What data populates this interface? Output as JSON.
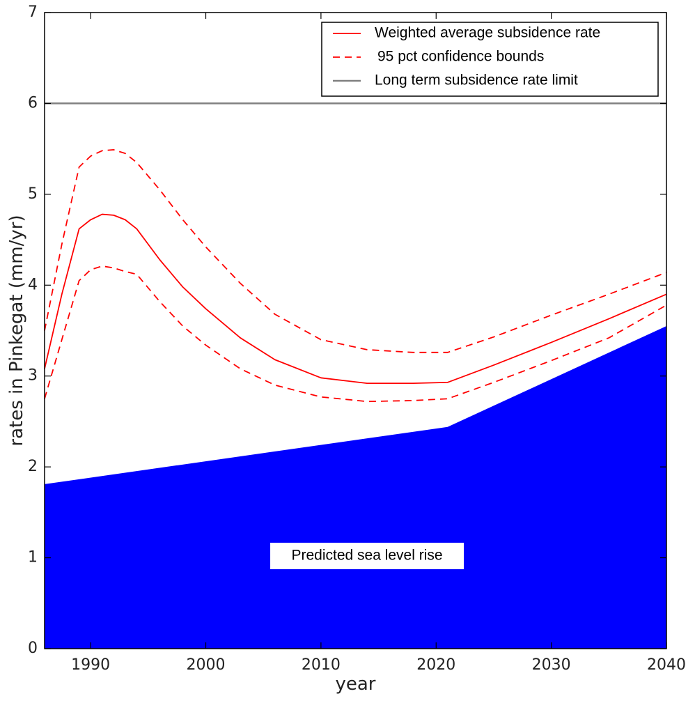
{
  "chart_data": {
    "type": "line",
    "xlabel": "year",
    "ylabel": "rates in Pinkegat (mm/yr)",
    "xlim": [
      1986,
      2040
    ],
    "ylim": [
      0,
      7
    ],
    "x_ticks": [
      1990,
      2000,
      2010,
      2020,
      2030,
      2040
    ],
    "y_ticks": [
      0,
      1,
      2,
      3,
      4,
      5,
      6,
      7
    ],
    "grid": false,
    "legend_position": "top-right",
    "series": [
      {
        "name": "Weighted average subsidence rate",
        "style": "solid",
        "color": "#ff0000",
        "x": [
          1986,
          1987.5,
          1989,
          1990,
          1991,
          1992,
          1993,
          1994,
          1996,
          1998,
          2000,
          2003,
          2006,
          2010,
          2014,
          2018,
          2021,
          2025,
          2030,
          2035,
          2040
        ],
        "y": [
          3.08,
          3.9,
          4.62,
          4.72,
          4.78,
          4.77,
          4.72,
          4.62,
          4.28,
          3.98,
          3.74,
          3.42,
          3.18,
          2.98,
          2.92,
          2.92,
          2.93,
          3.12,
          3.37,
          3.63,
          3.9
        ]
      },
      {
        "name": "95 pct confidence bounds",
        "style": "dashed",
        "color": "#ff0000",
        "x": [
          1986,
          1987.5,
          1989,
          1990,
          1991,
          1992,
          1993,
          1994,
          1996,
          1998,
          2000,
          2003,
          2006,
          2010,
          2014,
          2018,
          2021,
          2025,
          2030,
          2035,
          2040
        ],
        "y": [
          3.5,
          4.45,
          5.3,
          5.42,
          5.48,
          5.49,
          5.45,
          5.35,
          5.05,
          4.72,
          4.42,
          4.02,
          3.68,
          3.4,
          3.29,
          3.26,
          3.26,
          3.43,
          3.67,
          3.9,
          4.14
        ]
      },
      {
        "name": "",
        "style": "dashed",
        "color": "#ff0000",
        "x": [
          1986,
          1987.5,
          1989,
          1990,
          1991,
          1992,
          1993,
          1994,
          1996,
          1998,
          2000,
          2003,
          2006,
          2010,
          2014,
          2018,
          2021,
          2025,
          2030,
          2035,
          2040
        ],
        "y": [
          2.75,
          3.4,
          4.05,
          4.17,
          4.21,
          4.19,
          4.15,
          4.12,
          3.82,
          3.55,
          3.34,
          3.08,
          2.9,
          2.77,
          2.72,
          2.73,
          2.75,
          2.93,
          3.17,
          3.42,
          3.78
        ]
      },
      {
        "name": "Long term subsidence rate limit",
        "style": "solid",
        "color": "#808080",
        "x": [
          1986,
          2040
        ],
        "y": [
          6,
          6
        ]
      }
    ],
    "area": {
      "name": "Predicted sea level rise",
      "color": "#0000ff",
      "x": [
        1986,
        2021,
        2040
      ],
      "y": [
        1.81,
        2.44,
        3.55
      ]
    },
    "annotations": [
      {
        "text": "Predicted sea level rise",
        "x": 2014,
        "y": 1.02
      }
    ]
  }
}
